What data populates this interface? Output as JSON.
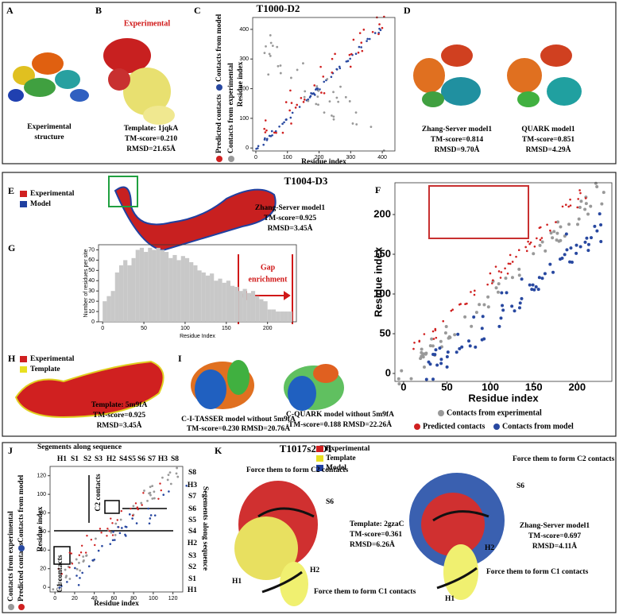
{
  "panel_labels": [
    "A",
    "B",
    "C",
    "D",
    "E",
    "F",
    "G",
    "H",
    "I",
    "J",
    "K"
  ],
  "top": {
    "title": "T1000-D2",
    "B_label": "Experimental",
    "A_caption": [
      "Experimental",
      "structure"
    ],
    "B_caption": [
      "Template: 1jqkA",
      "TM-score=0.210",
      "RMSD=21.65Å"
    ],
    "C": {
      "xlabel": "Residue index",
      "ylabel": "Residue index",
      "xlim": [
        -10,
        440
      ],
      "ylim": [
        -10,
        440
      ],
      "xticks": [
        0,
        100,
        200,
        300,
        400
      ],
      "yticks": [
        0,
        100,
        200,
        300,
        400
      ],
      "legend": [
        "Predicted contacts",
        "Contacts from model",
        "Contacts from experimental"
      ]
    },
    "D_captions": [
      [
        "Zhang-Server model1",
        "TM-score=0.814",
        "RMSD=9.70Å"
      ],
      [
        "QUARK model1",
        "TM-score=0.851",
        "RMSD=4.29Å"
      ]
    ]
  },
  "middle": {
    "title": "T1004-D3",
    "E_legend": [
      "Experimental",
      "Model"
    ],
    "E_caption": [
      "Zhang-Server model1",
      "TM-score=0.925",
      "RMSD=3.45Å"
    ],
    "G": {
      "type": "bar",
      "xlabel": "Residue Index",
      "ylabel": "Number of residues per site",
      "annotation": [
        "Gap",
        "enrichment"
      ],
      "xlim": [
        -5,
        235
      ],
      "ylim": [
        0,
        75
      ],
      "xticks": [
        0,
        50,
        100,
        150,
        200
      ],
      "yticks": [
        0,
        10,
        20,
        30,
        40,
        50,
        60,
        70
      ],
      "bin_width": 5,
      "x": [
        0,
        5,
        10,
        15,
        20,
        25,
        30,
        35,
        40,
        45,
        50,
        55,
        60,
        65,
        70,
        75,
        80,
        85,
        90,
        95,
        100,
        105,
        110,
        115,
        120,
        125,
        130,
        135,
        140,
        145,
        150,
        155,
        160,
        165,
        170,
        175,
        180,
        185,
        190,
        195,
        200,
        205,
        210,
        215,
        220,
        225
      ],
      "values": [
        20,
        25,
        30,
        48,
        55,
        60,
        55,
        62,
        70,
        72,
        68,
        72,
        70,
        72,
        70,
        68,
        62,
        65,
        60,
        64,
        62,
        58,
        55,
        50,
        48,
        45,
        47,
        40,
        42,
        38,
        40,
        35,
        34,
        30,
        32,
        28,
        30,
        25,
        22,
        20,
        12,
        12,
        10,
        10,
        10,
        10
      ],
      "color": "#c8c8c8"
    },
    "F": {
      "xlabel": "Residue index",
      "ylabel": "Residue index",
      "xlim": [
        -10,
        240
      ],
      "ylim": [
        -10,
        240
      ],
      "xticks": [
        0,
        50,
        100,
        150,
        200
      ],
      "yticks": [
        0,
        50,
        100,
        150,
        200
      ],
      "legend": [
        "Contacts from experimental",
        "Predicted contacts",
        "Contacts from model"
      ]
    },
    "H_legend": [
      "Experimental",
      "Template"
    ],
    "H_caption": [
      "Template: 5m9fA",
      "TM-score=0.925",
      "RMSD=3.45Å"
    ],
    "I_captions": [
      [
        "C-I-TASSER model without 5m9fA",
        "TM-score=0.230 RMSD=20.76Å"
      ],
      [
        "C-QUARK model without 5m9fA",
        "TM-score=0.188 RMSD=22.26Å"
      ]
    ]
  },
  "bottom": {
    "title": "T1017s2-D1",
    "J": {
      "segments_label": "Segements along sequence",
      "top_segments": [
        "H1",
        "S1",
        "S2",
        "S3",
        "H2",
        "S4",
        "S5",
        "S6",
        "S7",
        "H3",
        "S8"
      ],
      "right_segments": [
        "S8",
        "H3",
        "S7",
        "S6",
        "S5",
        "S4",
        "H2",
        "S3",
        "S2",
        "S1",
        "H1"
      ],
      "xlabel": "Residue index",
      "ylabel": "Residue index",
      "xlim": [
        -5,
        130
      ],
      "ylim": [
        -5,
        130
      ],
      "xticks": [
        0,
        20,
        40,
        60,
        80,
        100,
        120
      ],
      "yticks": [
        0,
        20,
        40,
        60,
        80,
        100,
        120
      ],
      "box_labels": [
        "C2 contacts",
        "C1 contacts"
      ],
      "legend": [
        "Contacts from experimental",
        "Predicted contacts",
        "Contacts from model"
      ]
    },
    "K_legend": [
      "Experimental",
      "Template",
      "Model"
    ],
    "K_left": {
      "c2": "Force them to form C2 contacts",
      "s6": "S6",
      "caption": [
        "Template: 2gzaC",
        "TM-score=0.361",
        "RMSD=6.26Å"
      ],
      "h1": "H1",
      "h2": "H2",
      "c1": "Force them to form C1 contacts"
    },
    "K_right": {
      "c2": "Force them to form C2 contacts",
      "s6": "S6",
      "caption": [
        "Zhang-Server model1",
        "TM-score=0.697",
        "RMSD=4.11Å"
      ],
      "h2": "H2",
      "c1": "Force them to form C1 contacts",
      "h1": "H1"
    }
  }
}
